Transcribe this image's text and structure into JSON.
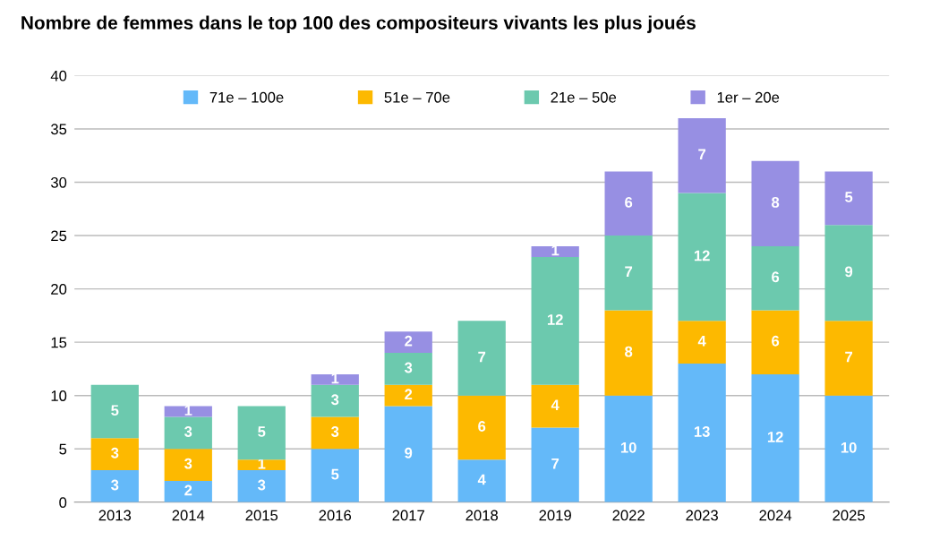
{
  "chart_data": {
    "type": "bar",
    "title": "Nombre de femmes dans le top 100 des compositeurs vivants les plus joués",
    "categories": [
      "2013",
      "2014",
      "2015",
      "2016",
      "2017",
      "2018",
      "2019",
      "2022",
      "2023",
      "2024",
      "2025"
    ],
    "series": [
      {
        "name": "71e – 100e",
        "color": "#64b9f9",
        "values": [
          3,
          2,
          3,
          5,
          9,
          4,
          7,
          10,
          13,
          12,
          10
        ]
      },
      {
        "name": "51e – 70e",
        "color": "#fdb900",
        "values": [
          3,
          3,
          1,
          3,
          2,
          6,
          4,
          8,
          4,
          6,
          7
        ]
      },
      {
        "name": "21e – 50e",
        "color": "#6cc9ae",
        "values": [
          5,
          3,
          5,
          3,
          3,
          7,
          12,
          7,
          12,
          6,
          9
        ]
      },
      {
        "name": "1er – 20e",
        "color": "#978fe3",
        "values": [
          null,
          1,
          null,
          1,
          2,
          null,
          1,
          6,
          7,
          8,
          5
        ]
      }
    ],
    "stacked": true,
    "data_labels": true,
    "ylim": [
      0,
      40
    ],
    "yticks": [
      0,
      5,
      10,
      15,
      20,
      25,
      30,
      35,
      40
    ],
    "grid": "y",
    "legend": "top"
  }
}
